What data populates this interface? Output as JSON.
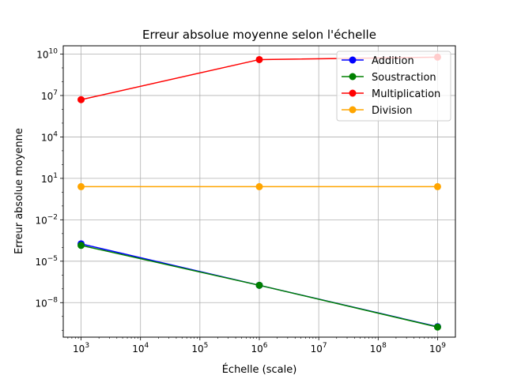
{
  "chart_data": {
    "type": "line",
    "title": "Erreur absolue moyenne selon l'échelle",
    "xlabel": "Échelle (scale)",
    "ylabel": "Erreur absolue moyenne",
    "xscale": "log",
    "yscale": "log",
    "xlim_exp": [
      2.7,
      9.3
    ],
    "ylim_exp": [
      -10.5,
      10.6
    ],
    "grid": true,
    "legend_position": "top-right",
    "x": [
      1000,
      1000000,
      1000000000
    ],
    "x_ticks": [
      {
        "base": "10",
        "exp": "3",
        "value": 3
      },
      {
        "base": "10",
        "exp": "4",
        "value": 4
      },
      {
        "base": "10",
        "exp": "5",
        "value": 5
      },
      {
        "base": "10",
        "exp": "6",
        "value": 6
      },
      {
        "base": "10",
        "exp": "7",
        "value": 7
      },
      {
        "base": "10",
        "exp": "8",
        "value": 8
      },
      {
        "base": "10",
        "exp": "9",
        "value": 9
      }
    ],
    "y_ticks": [
      {
        "base": "10",
        "exp": "10",
        "value": 10
      },
      {
        "base": "10",
        "exp": "7",
        "value": 7
      },
      {
        "base": "10",
        "exp": "4",
        "value": 4
      },
      {
        "base": "10",
        "exp": "1",
        "value": 1
      },
      {
        "base": "10",
        "exp": "−2",
        "value": -2
      },
      {
        "base": "10",
        "exp": "−5",
        "value": -5
      },
      {
        "base": "10",
        "exp": "−8",
        "value": -8
      }
    ],
    "series": [
      {
        "name": "Addition",
        "color": "#0000ff",
        "values": [
          0.00018,
          1.8e-07,
          1.8e-10
        ]
      },
      {
        "name": "Soustraction",
        "color": "#008000",
        "values": [
          0.00014,
          1.8e-07,
          1.7e-10
        ]
      },
      {
        "name": "Multiplication",
        "color": "#ff0000",
        "values": [
          5000000.0,
          4000000000.0,
          6000000000.0
        ]
      },
      {
        "name": "Division",
        "color": "#ffa500",
        "values": [
          2.5,
          2.5,
          2.5
        ]
      }
    ]
  }
}
